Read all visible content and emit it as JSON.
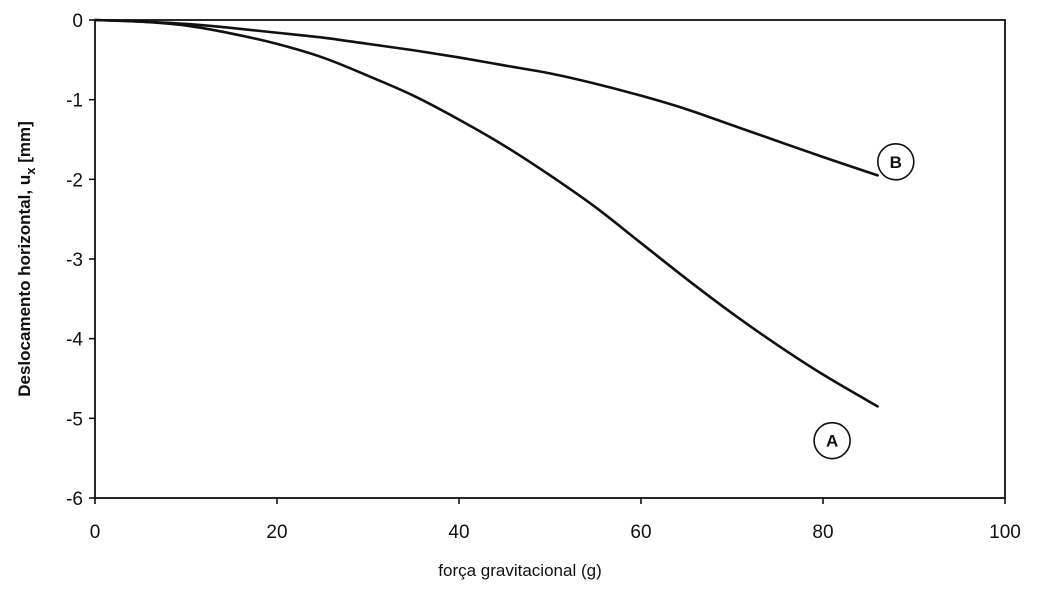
{
  "chart_data": {
    "type": "line",
    "title": "",
    "xlabel": "força gravitacional (g)",
    "ylabel": "Deslocamento horizontal, u",
    "ylabel_subscript": "x",
    "ylabel_unit": " [mm]",
    "xlim": [
      0,
      100
    ],
    "ylim": [
      -6,
      0
    ],
    "grid": false,
    "legend": "none",
    "x_ticks": [
      "0",
      "20",
      "40",
      "60",
      "80",
      "100"
    ],
    "y_ticks": [
      "0",
      "-1",
      "-2",
      "-3",
      "-4",
      "-5",
      "-6"
    ],
    "series": [
      {
        "name": "A",
        "x": [
          0,
          5,
          10,
          15,
          20,
          25,
          30,
          35,
          40,
          45,
          50,
          55,
          60,
          65,
          70,
          75,
          80,
          86
        ],
        "y": [
          0,
          -0.02,
          -0.07,
          -0.17,
          -0.3,
          -0.47,
          -0.7,
          -0.95,
          -1.25,
          -1.58,
          -1.95,
          -2.35,
          -2.8,
          -3.25,
          -3.68,
          -4.08,
          -4.45,
          -4.85
        ]
      },
      {
        "name": "B",
        "x": [
          0,
          5,
          10,
          15,
          20,
          25,
          30,
          35,
          40,
          45,
          50,
          55,
          60,
          65,
          70,
          75,
          80,
          86
        ],
        "y": [
          0,
          -0.02,
          -0.05,
          -0.1,
          -0.16,
          -0.22,
          -0.3,
          -0.38,
          -0.47,
          -0.57,
          -0.67,
          -0.8,
          -0.95,
          -1.12,
          -1.32,
          -1.52,
          -1.72,
          -1.95
        ]
      }
    ],
    "markers": [
      {
        "label": "A",
        "x": 81,
        "y": -5.28
      },
      {
        "label": "B",
        "x": 88,
        "y": -1.78
      }
    ]
  }
}
